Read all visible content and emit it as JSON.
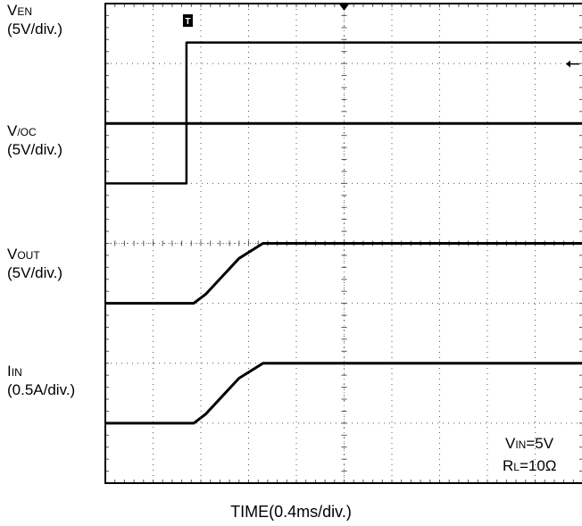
{
  "chart_data": {
    "type": "line",
    "title": "",
    "xlabel": "TIME(0.4ms/div.)",
    "ylabel": "",
    "grid": true,
    "divisions": {
      "x": 10,
      "y": 8
    },
    "x_unit": "div",
    "x_range": [
      0,
      10
    ],
    "channels": [
      {
        "name_main": "V",
        "name_sub": "EN",
        "scale": "(5V/div.)",
        "name": "VEN",
        "x": [
          0,
          1.7,
          1.7,
          10
        ],
        "y": [
          5.0,
          5.0,
          7.35,
          7.35
        ]
      },
      {
        "name_main": "V",
        "name_sub": "/OC",
        "scale": "(5V/div.)",
        "name": "V/OC",
        "x": [
          0,
          10
        ],
        "y": [
          6.0,
          6.0
        ]
      },
      {
        "name_main": "V",
        "name_sub": "OUT",
        "scale": "(5V/div.)",
        "name": "VOUT",
        "x": [
          0,
          1.85,
          2.1,
          2.8,
          3.3,
          10
        ],
        "y": [
          3.0,
          3.0,
          3.15,
          3.75,
          4.0,
          4.0
        ]
      },
      {
        "name_main": "I",
        "name_sub": "IN",
        "scale": "(0.5A/div.)",
        "name": "IIN",
        "x": [
          0,
          1.85,
          2.1,
          2.8,
          3.3,
          10
        ],
        "y": [
          1.0,
          1.0,
          1.15,
          1.75,
          2.0,
          2.0
        ]
      }
    ],
    "annotations": [
      {
        "main": "V",
        "sub": "IN",
        "rest": "=5V"
      },
      {
        "main": "R",
        "sub": "L",
        "rest": "=10Ω"
      }
    ],
    "markers": {
      "trigger_label": "T"
    }
  }
}
